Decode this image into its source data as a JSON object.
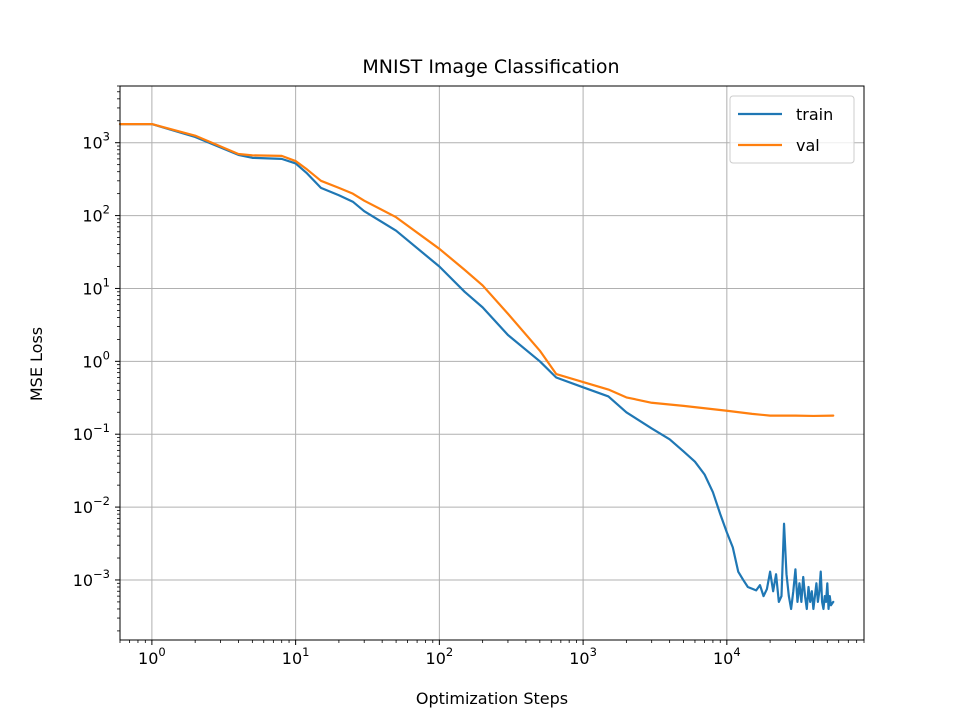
{
  "chart_data": {
    "type": "line",
    "title": "MNIST Image Classification",
    "xlabel": "Optimization Steps",
    "ylabel": "MSE Loss",
    "xscale": "log",
    "yscale": "log",
    "xlim": [
      0.6,
      90000
    ],
    "ylim": [
      0.00015,
      6000
    ],
    "xticks": [
      {
        "value": 1,
        "label": "10^0"
      },
      {
        "value": 10,
        "label": "10^1"
      },
      {
        "value": 100,
        "label": "10^2"
      },
      {
        "value": 1000,
        "label": "10^3"
      },
      {
        "value": 10000,
        "label": "10^4"
      }
    ],
    "yticks": [
      {
        "value": 0.001,
        "label": "10^−3"
      },
      {
        "value": 0.01,
        "label": "10^−2"
      },
      {
        "value": 0.1,
        "label": "10^−1"
      },
      {
        "value": 1,
        "label": "10^0"
      },
      {
        "value": 10,
        "label": "10^1"
      },
      {
        "value": 100,
        "label": "10^2"
      },
      {
        "value": 1000,
        "label": "10^3"
      }
    ],
    "grid": true,
    "legend_position": "top-right",
    "series": [
      {
        "name": "train",
        "color": "#1f77b4",
        "points": [
          [
            0.6,
            1800
          ],
          [
            1,
            1800
          ],
          [
            2,
            1200
          ],
          [
            4,
            680
          ],
          [
            5,
            620
          ],
          [
            8,
            600
          ],
          [
            10,
            520
          ],
          [
            12,
            380
          ],
          [
            15,
            240
          ],
          [
            20,
            190
          ],
          [
            25,
            155
          ],
          [
            30,
            115
          ],
          [
            50,
            62
          ],
          [
            100,
            20
          ],
          [
            150,
            9
          ],
          [
            200,
            5.5
          ],
          [
            300,
            2.3
          ],
          [
            500,
            1.0
          ],
          [
            650,
            0.6
          ],
          [
            1000,
            0.44
          ],
          [
            1500,
            0.33
          ],
          [
            2000,
            0.2
          ],
          [
            3000,
            0.12
          ],
          [
            4000,
            0.085
          ],
          [
            5000,
            0.058
          ],
          [
            6000,
            0.042
          ],
          [
            7000,
            0.028
          ],
          [
            8000,
            0.016
          ],
          [
            9000,
            0.008
          ],
          [
            10000,
            0.0045
          ],
          [
            11000,
            0.0028
          ],
          [
            12000,
            0.0013
          ],
          [
            13000,
            0.001
          ],
          [
            14000,
            0.0008
          ],
          [
            16000,
            0.00072
          ],
          [
            17000,
            0.00085
          ],
          [
            18000,
            0.0006
          ],
          [
            19000,
            0.00075
          ],
          [
            20000,
            0.0013
          ],
          [
            21000,
            0.0007
          ],
          [
            22000,
            0.0012
          ],
          [
            23000,
            0.0005
          ],
          [
            24000,
            0.0006
          ],
          [
            25000,
            0.0059
          ],
          [
            26000,
            0.0012
          ],
          [
            27000,
            0.0006
          ],
          [
            28000,
            0.0004
          ],
          [
            29000,
            0.0007
          ],
          [
            30000,
            0.0014
          ],
          [
            31000,
            0.0005
          ],
          [
            32000,
            0.0009
          ],
          [
            33000,
            0.0005
          ],
          [
            34000,
            0.0011
          ],
          [
            35000,
            0.0006
          ],
          [
            36000,
            0.0004
          ],
          [
            37000,
            0.0008
          ],
          [
            38000,
            0.0005
          ],
          [
            39000,
            0.0007
          ],
          [
            40000,
            0.0004
          ],
          [
            41000,
            0.0006
          ],
          [
            42000,
            0.0009
          ],
          [
            43000,
            0.0005
          ],
          [
            44000,
            0.0007
          ],
          [
            45000,
            0.0013
          ],
          [
            46000,
            0.0005
          ],
          [
            47000,
            0.0004
          ],
          [
            48000,
            0.0006
          ],
          [
            49000,
            0.0005
          ],
          [
            50000,
            0.0009
          ],
          [
            51000,
            0.0004
          ],
          [
            52000,
            0.0006
          ],
          [
            53000,
            0.00045
          ],
          [
            55000,
            0.0005
          ]
        ]
      },
      {
        "name": "val",
        "color": "#ff7f0e",
        "points": [
          [
            0.6,
            1800
          ],
          [
            1,
            1800
          ],
          [
            2,
            1250
          ],
          [
            4,
            700
          ],
          [
            5,
            670
          ],
          [
            8,
            660
          ],
          [
            10,
            560
          ],
          [
            12,
            430
          ],
          [
            15,
            300
          ],
          [
            20,
            240
          ],
          [
            25,
            200
          ],
          [
            30,
            160
          ],
          [
            50,
            95
          ],
          [
            100,
            35
          ],
          [
            150,
            18
          ],
          [
            200,
            11
          ],
          [
            300,
            4.5
          ],
          [
            500,
            1.4
          ],
          [
            650,
            0.67
          ],
          [
            1000,
            0.52
          ],
          [
            1500,
            0.41
          ],
          [
            2000,
            0.32
          ],
          [
            3000,
            0.27
          ],
          [
            5000,
            0.245
          ],
          [
            10000,
            0.21
          ],
          [
            15000,
            0.19
          ],
          [
            20000,
            0.18
          ],
          [
            30000,
            0.18
          ],
          [
            40000,
            0.178
          ],
          [
            55000,
            0.18
          ]
        ]
      }
    ]
  }
}
